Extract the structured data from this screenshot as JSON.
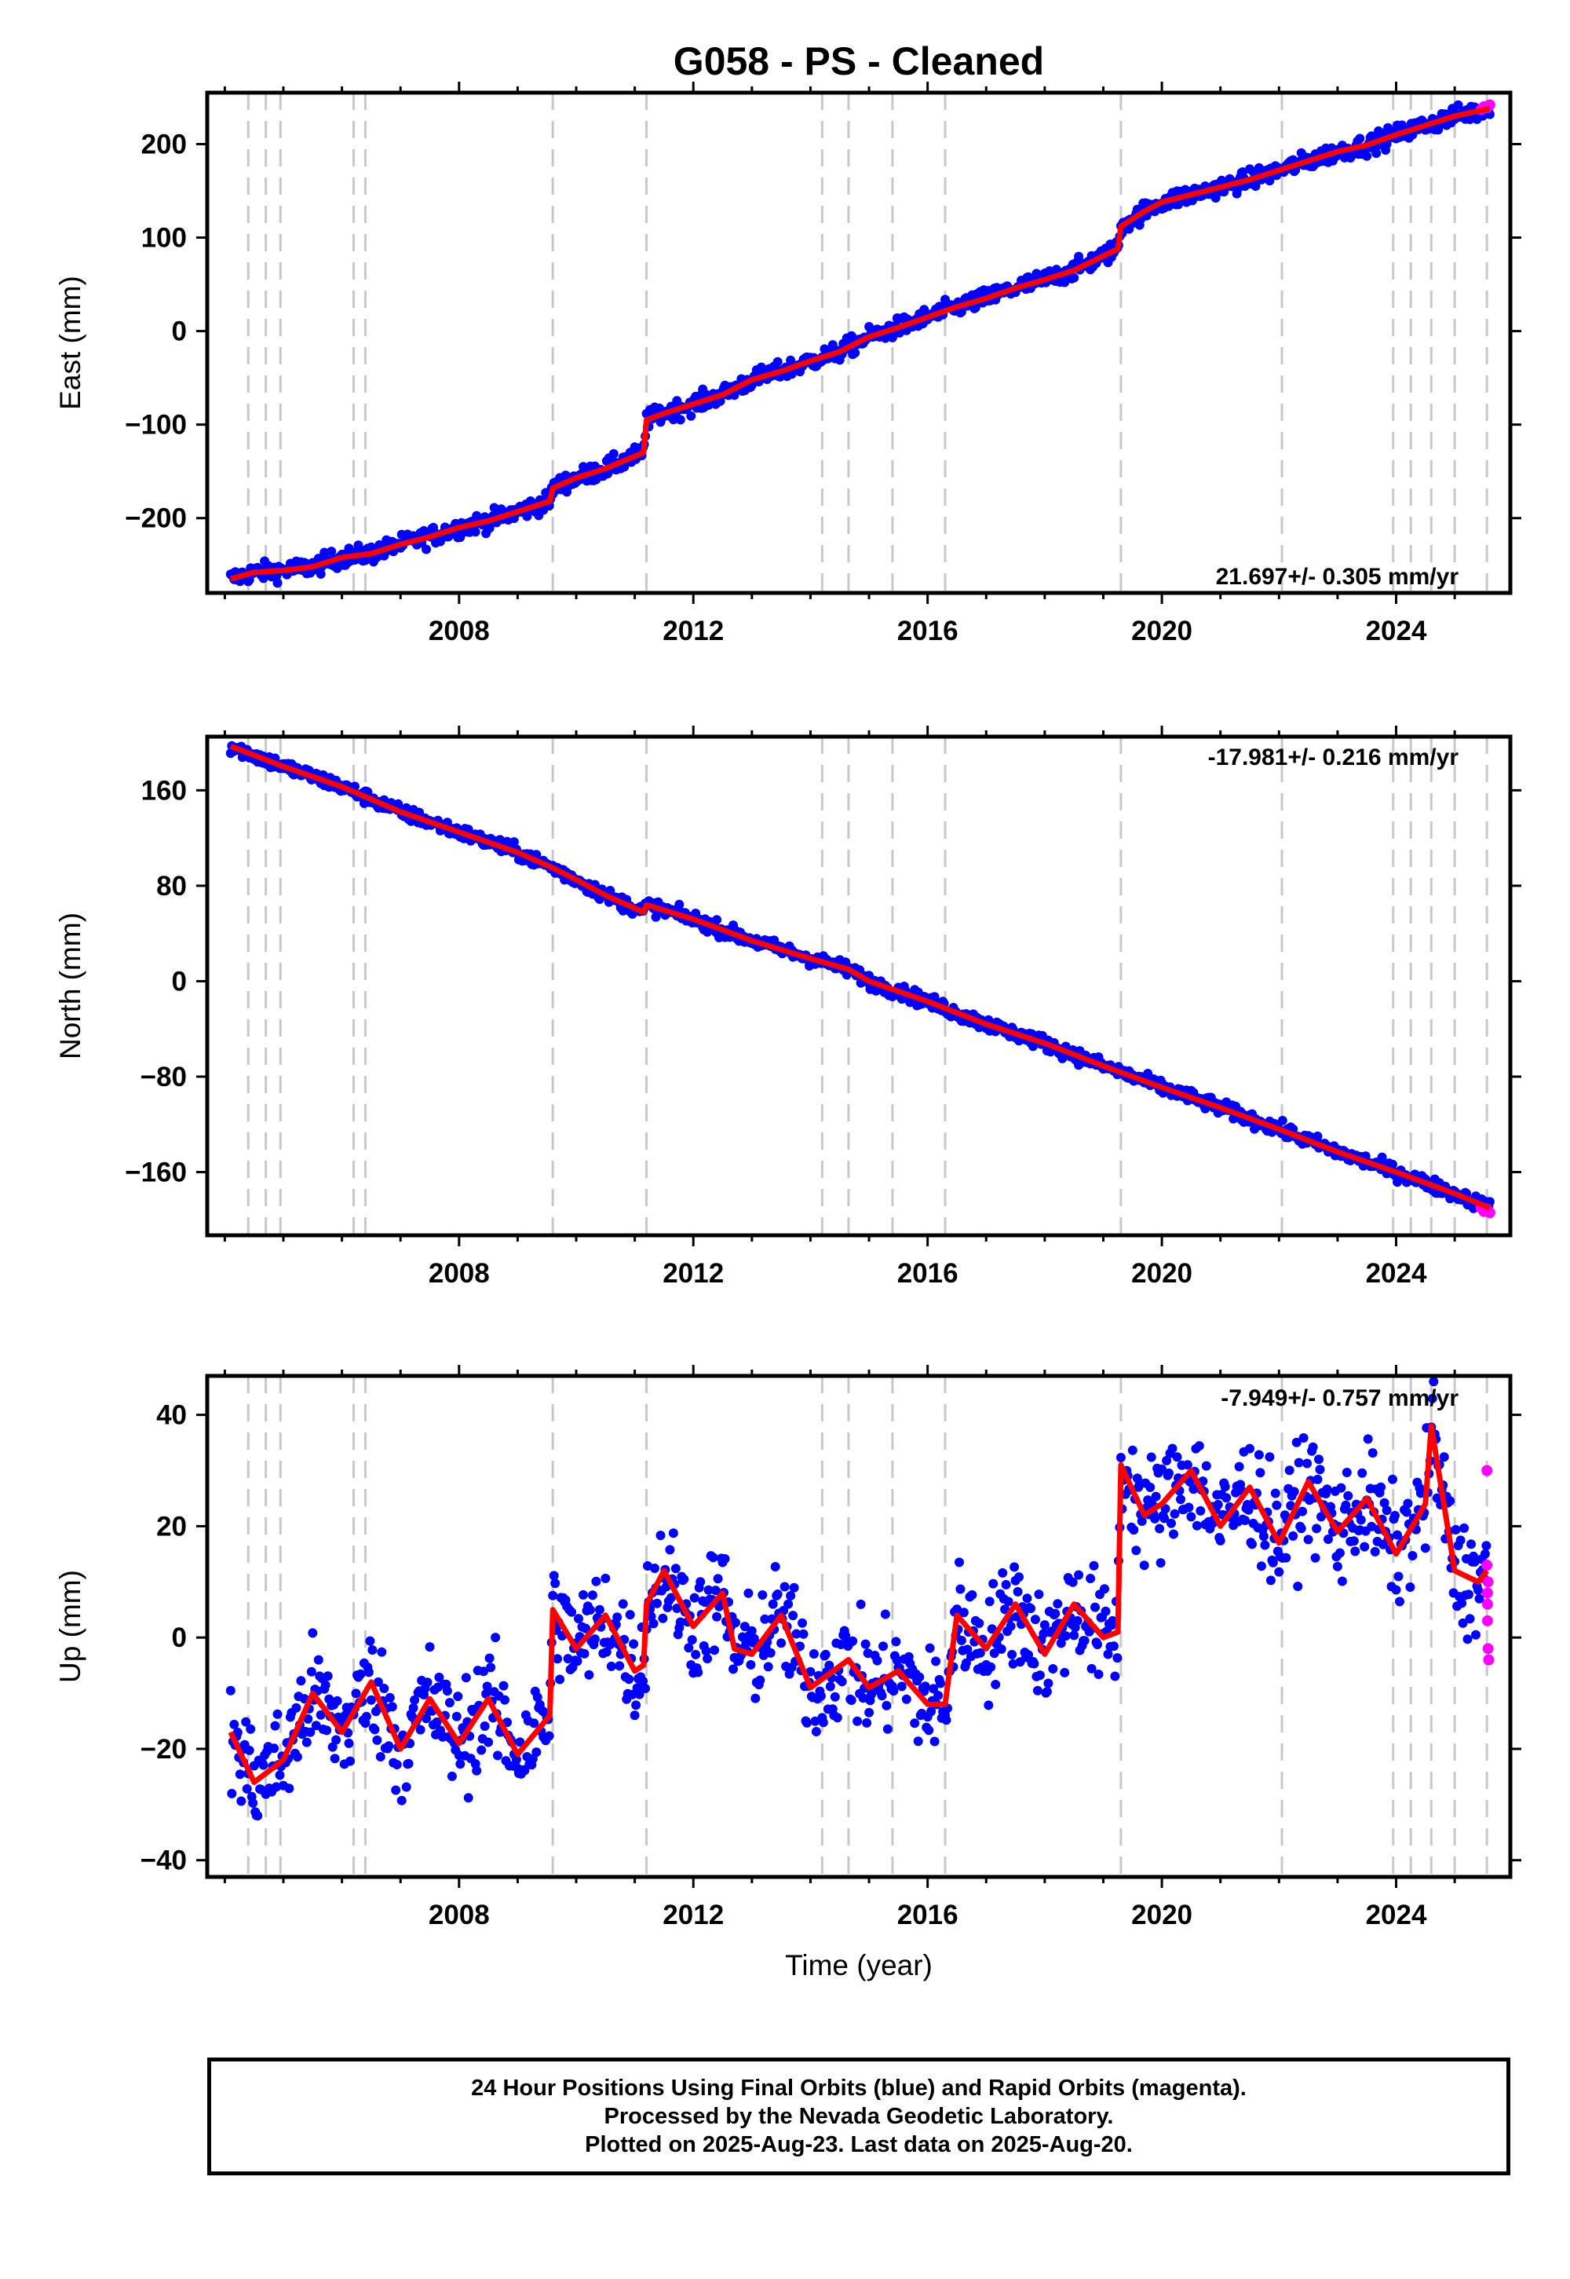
{
  "title": "G058  - PS - Cleaned",
  "xlabel": "Time (year)",
  "colors": {
    "final": "#0000ff",
    "rapid": "#ff00ff",
    "model": "#ff0000",
    "event": "#c8c8c8",
    "axis": "#000000"
  },
  "footer": {
    "line1": "24 Hour Positions Using Final Orbits (blue) and Rapid Orbits (magenta).",
    "line2": "Processed by the Nevada Geodetic Laboratory.",
    "line3": "Plotted on 2025-Aug-23. Last data on 2025-Aug-20."
  },
  "chart_data": [
    {
      "type": "scatter",
      "component": "east",
      "ylabel": "East (mm)",
      "rate_label": "21.697+/- 0.305 mm/yr",
      "xlim": [
        2003.7,
        2025.95
      ],
      "ylim": [
        -280,
        255
      ],
      "xticks": [
        2008,
        2012,
        2016,
        2020,
        2024
      ],
      "yticks": [
        -200,
        -100,
        0,
        100,
        200
      ],
      "event_lines": [
        2004.4,
        2004.7,
        2004.95,
        2006.2,
        2006.4,
        2009.6,
        2011.2,
        2014.2,
        2014.65,
        2015.4,
        2016.3,
        2019.3,
        2022.05,
        2023.95,
        2024.25,
        2024.6,
        2025.0,
        2025.55
      ],
      "model": [
        [
          2004.1,
          -265
        ],
        [
          2004.5,
          -258
        ],
        [
          2005.0,
          -256
        ],
        [
          2005.5,
          -252
        ],
        [
          2006.0,
          -242
        ],
        [
          2006.5,
          -238
        ],
        [
          2007.0,
          -228
        ],
        [
          2007.5,
          -220
        ],
        [
          2008.0,
          -210
        ],
        [
          2008.5,
          -203
        ],
        [
          2009.0,
          -193
        ],
        [
          2009.55,
          -182
        ],
        [
          2009.6,
          -168
        ],
        [
          2010.0,
          -157
        ],
        [
          2010.5,
          -147
        ],
        [
          2011.15,
          -130
        ],
        [
          2011.2,
          -95
        ],
        [
          2011.5,
          -88
        ],
        [
          2012.0,
          -78
        ],
        [
          2012.5,
          -68
        ],
        [
          2013.0,
          -52
        ],
        [
          2013.5,
          -43
        ],
        [
          2014.0,
          -32
        ],
        [
          2014.5,
          -22
        ],
        [
          2015.0,
          -6
        ],
        [
          2015.5,
          4
        ],
        [
          2016.0,
          15
        ],
        [
          2016.5,
          26
        ],
        [
          2017.0,
          35
        ],
        [
          2017.5,
          46
        ],
        [
          2018.0,
          55
        ],
        [
          2018.5,
          65
        ],
        [
          2019.25,
          88
        ],
        [
          2019.3,
          112
        ],
        [
          2019.7,
          128
        ],
        [
          2020.0,
          138
        ],
        [
          2020.5,
          146
        ],
        [
          2021.0,
          154
        ],
        [
          2021.5,
          162
        ],
        [
          2022.0,
          172
        ],
        [
          2022.5,
          182
        ],
        [
          2023.0,
          192
        ],
        [
          2023.5,
          199
        ],
        [
          2024.0,
          210
        ],
        [
          2024.5,
          220
        ],
        [
          2025.0,
          230
        ],
        [
          2025.6,
          238
        ]
      ],
      "scatter_noise": 5,
      "rapid_points": [
        [
          2025.45,
          237
        ],
        [
          2025.5,
          240
        ],
        [
          2025.55,
          239
        ],
        [
          2025.6,
          242
        ]
      ]
    },
    {
      "type": "scatter",
      "component": "north",
      "ylabel": "North (mm)",
      "rate_label": "-17.981+/- 0.216 mm/yr",
      "xlim": [
        2003.7,
        2025.95
      ],
      "ylim": [
        -213,
        205
      ],
      "xticks": [
        2008,
        2012,
        2016,
        2020,
        2024
      ],
      "yticks": [
        -160,
        -80,
        0,
        80,
        160
      ],
      "event_lines": [
        2004.4,
        2004.7,
        2004.95,
        2006.2,
        2006.4,
        2009.6,
        2011.2,
        2014.2,
        2014.65,
        2015.4,
        2016.3,
        2019.3,
        2022.05,
        2023.95,
        2024.25,
        2024.6,
        2025.0,
        2025.55
      ],
      "model": [
        [
          2004.1,
          197
        ],
        [
          2005.0,
          180
        ],
        [
          2006.0,
          163
        ],
        [
          2007.0,
          142
        ],
        [
          2008.0,
          125
        ],
        [
          2009.0,
          108
        ],
        [
          2009.6,
          95
        ],
        [
          2010.0,
          85
        ],
        [
          2010.5,
          72
        ],
        [
          2011.15,
          58
        ],
        [
          2011.2,
          64
        ],
        [
          2012.0,
          52
        ],
        [
          2013.0,
          34
        ],
        [
          2014.0,
          19
        ],
        [
          2014.65,
          10
        ],
        [
          2015.0,
          0
        ],
        [
          2016.0,
          -17
        ],
        [
          2017.0,
          -36
        ],
        [
          2018.0,
          -52
        ],
        [
          2019.0,
          -71
        ],
        [
          2020.0,
          -89
        ],
        [
          2021.0,
          -106
        ],
        [
          2022.0,
          -124
        ],
        [
          2023.0,
          -143
        ],
        [
          2024.0,
          -160
        ],
        [
          2025.0,
          -178
        ],
        [
          2025.6,
          -190
        ]
      ],
      "scatter_noise": 3,
      "rapid_points": [
        [
          2025.45,
          -190
        ],
        [
          2025.5,
          -193
        ],
        [
          2025.55,
          -191
        ],
        [
          2025.6,
          -194
        ]
      ]
    },
    {
      "type": "scatter",
      "component": "up",
      "ylabel": "Up (mm)",
      "rate_label": "-7.949+/- 0.757 mm/yr",
      "xlim": [
        2003.7,
        2025.95
      ],
      "ylim": [
        -43,
        47
      ],
      "xticks": [
        2008,
        2012,
        2016,
        2020,
        2024
      ],
      "yticks": [
        -40,
        -20,
        0,
        20,
        40
      ],
      "event_lines": [
        2004.4,
        2004.7,
        2004.95,
        2006.2,
        2006.4,
        2009.6,
        2011.2,
        2014.2,
        2014.65,
        2015.4,
        2016.3,
        2019.3,
        2022.05,
        2023.95,
        2024.25,
        2024.6,
        2025.0,
        2025.55
      ],
      "model": [
        [
          2004.1,
          -17
        ],
        [
          2004.5,
          -26
        ],
        [
          2005.0,
          -22
        ],
        [
          2005.5,
          -10
        ],
        [
          2006.0,
          -17
        ],
        [
          2006.5,
          -8
        ],
        [
          2007.0,
          -20
        ],
        [
          2007.5,
          -11
        ],
        [
          2008.0,
          -19
        ],
        [
          2008.5,
          -11
        ],
        [
          2009.0,
          -21
        ],
        [
          2009.55,
          -14
        ],
        [
          2009.6,
          5
        ],
        [
          2010.0,
          -2
        ],
        [
          2010.5,
          4
        ],
        [
          2011.0,
          -6
        ],
        [
          2011.15,
          -5
        ],
        [
          2011.2,
          6
        ],
        [
          2011.5,
          12
        ],
        [
          2012.0,
          2
        ],
        [
          2012.5,
          8
        ],
        [
          2012.7,
          -2
        ],
        [
          2013.0,
          -3
        ],
        [
          2013.5,
          4
        ],
        [
          2014.0,
          -9
        ],
        [
          2014.65,
          -4
        ],
        [
          2015.0,
          -9
        ],
        [
          2015.5,
          -6
        ],
        [
          2016.0,
          -12
        ],
        [
          2016.3,
          -12
        ],
        [
          2016.5,
          4
        ],
        [
          2017.0,
          -2
        ],
        [
          2017.5,
          6
        ],
        [
          2018.0,
          -3
        ],
        [
          2018.5,
          6
        ],
        [
          2019.0,
          0
        ],
        [
          2019.25,
          1
        ],
        [
          2019.3,
          31
        ],
        [
          2019.7,
          22
        ],
        [
          2020.0,
          24
        ],
        [
          2020.5,
          30
        ],
        [
          2021.0,
          20
        ],
        [
          2021.5,
          27
        ],
        [
          2022.0,
          17
        ],
        [
          2022.5,
          28
        ],
        [
          2023.0,
          19
        ],
        [
          2023.5,
          25
        ],
        [
          2024.0,
          15
        ],
        [
          2024.5,
          24
        ],
        [
          2024.6,
          38
        ],
        [
          2025.0,
          12
        ],
        [
          2025.4,
          10
        ],
        [
          2025.55,
          12
        ]
      ],
      "scatter_noise": 5,
      "rapid_points": [
        [
          2025.55,
          30
        ],
        [
          2025.55,
          13
        ],
        [
          2025.56,
          8
        ],
        [
          2025.56,
          3
        ],
        [
          2025.57,
          -2
        ],
        [
          2025.58,
          -4
        ],
        [
          2025.57,
          10
        ],
        [
          2025.56,
          6
        ]
      ]
    }
  ]
}
